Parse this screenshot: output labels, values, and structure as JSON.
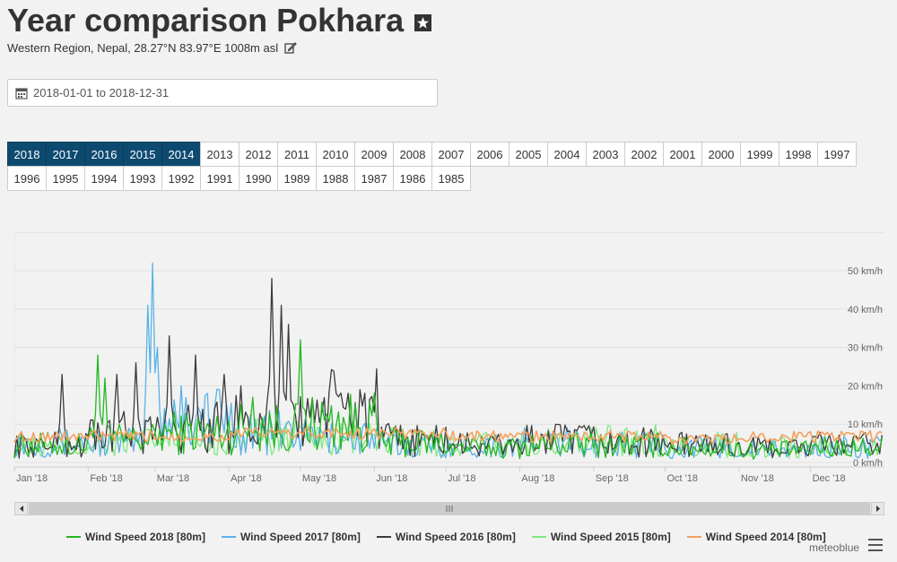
{
  "header": {
    "title": "Year comparison Pokhara",
    "subtitle": "Western Region, Nepal, 28.27°N 83.97°E 1008m asl"
  },
  "date_range": "2018-01-01 to 2018-12-31",
  "years_row1": [
    "2018",
    "2017",
    "2016",
    "2015",
    "2014",
    "2013",
    "2012",
    "2011",
    "2010",
    "2009",
    "2008",
    "2007",
    "2006",
    "2005",
    "2004",
    "2003",
    "2002",
    "2001",
    "2000",
    "1999",
    "1998",
    "1997"
  ],
  "years_row2": [
    "1996",
    "1995",
    "1994",
    "1993",
    "1992",
    "1991",
    "1990",
    "1989",
    "1988",
    "1987",
    "1986",
    "1985"
  ],
  "active_years": [
    "2018",
    "2017",
    "2016",
    "2015",
    "2014"
  ],
  "chart_data": {
    "type": "line",
    "title": "",
    "xlabel": "",
    "ylabel": "",
    "ylim": [
      0,
      50
    ],
    "y_unit": "km/h",
    "y_ticks": [
      "0 km/h",
      "10 km/h",
      "20 km/h",
      "30 km/h",
      "40 km/h",
      "50 km/h"
    ],
    "x_ticks": [
      "Jan '18",
      "Feb '18",
      "Mar '18",
      "Apr '18",
      "May '18",
      "Jun '18",
      "Jul '18",
      "Aug '18",
      "Sep '18",
      "Oct '18",
      "Nov '18",
      "Dec '18"
    ],
    "x": [
      "Jan",
      "Feb",
      "Mar",
      "Apr",
      "May",
      "Jun",
      "Jul",
      "Aug",
      "Sep",
      "Oct",
      "Nov",
      "Dec"
    ],
    "grid": true,
    "legend_position": "bottom",
    "series": [
      {
        "name": "Wind Speed 2018 [80m]",
        "color": "#22b822",
        "values": [
          7,
          9,
          12,
          14,
          16,
          8,
          6,
          7,
          7,
          6,
          5,
          6
        ]
      },
      {
        "name": "Wind Speed 2017 [80m]",
        "color": "#5ab2e6",
        "values": [
          8,
          8,
          18,
          12,
          10,
          7,
          7,
          8,
          7,
          6,
          5,
          6
        ]
      },
      {
        "name": "Wind Speed 2016 [80m]",
        "color": "#3c3c3c",
        "values": [
          7,
          12,
          14,
          16,
          22,
          9,
          7,
          9,
          8,
          7,
          6,
          7
        ]
      },
      {
        "name": "Wind Speed 2015 [80m]",
        "color": "#7fe87f",
        "values": [
          6,
          8,
          9,
          10,
          9,
          8,
          7,
          8,
          9,
          7,
          6,
          6
        ]
      },
      {
        "name": "Wind Speed 2014 [80m]",
        "color": "#f4a15d",
        "values": [
          8,
          8,
          8,
          9,
          9,
          9,
          8,
          8,
          8,
          7,
          8,
          8
        ]
      }
    ]
  },
  "credit": "meteoblue"
}
